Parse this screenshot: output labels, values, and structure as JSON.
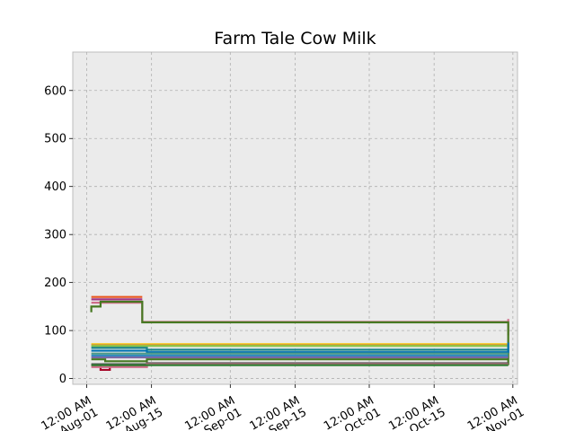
{
  "chart_data": {
    "type": "line",
    "step": true,
    "title": "Farm Tale Cow Milk",
    "xlabel": "",
    "ylabel": "",
    "ylim": [
      -12,
      680
    ],
    "xlim": [
      "2021-07-29",
      "2021-11-02"
    ],
    "yticks": [
      0,
      100,
      200,
      300,
      400,
      500,
      600
    ],
    "xticks": [
      {
        "date": "2021-08-01",
        "label": [
          "12:00 AM",
          "Aug-01"
        ]
      },
      {
        "date": "2021-08-15",
        "label": [
          "12:00 AM",
          "Aug-15"
        ]
      },
      {
        "date": "2021-09-01",
        "label": [
          "12:00 AM",
          "Sep-01"
        ]
      },
      {
        "date": "2021-09-15",
        "label": [
          "12:00 AM",
          "Sep-15"
        ]
      },
      {
        "date": "2021-10-01",
        "label": [
          "12:00 AM",
          "Oct-01"
        ]
      },
      {
        "date": "2021-10-15",
        "label": [
          "12:00 AM",
          "Oct-15"
        ]
      },
      {
        "date": "2021-11-01",
        "label": [
          "12:00 AM",
          "Nov-01"
        ]
      }
    ],
    "grid": true,
    "legend": "none",
    "series": [
      {
        "color": "#e8581f",
        "points": [
          [
            "2021-08-02",
            170
          ],
          [
            "2021-08-13",
            170
          ]
        ]
      },
      {
        "color": "#a23582",
        "points": [
          [
            "2021-08-02",
            165
          ],
          [
            "2021-08-13",
            165
          ]
        ]
      },
      {
        "color": "#cf6e8a",
        "points": [
          [
            "2021-08-02",
            158
          ],
          [
            "2021-08-13",
            158
          ],
          [
            "2021-08-13",
            118
          ],
          [
            "2021-10-31",
            124
          ],
          [
            "2021-10-31",
            90
          ]
        ]
      },
      {
        "color": "#467821",
        "points": [
          [
            "2021-08-02",
            138
          ],
          [
            "2021-08-02",
            150
          ],
          [
            "2021-08-04",
            160
          ],
          [
            "2021-08-13",
            160
          ],
          [
            "2021-08-13",
            117
          ],
          [
            "2021-10-31",
            117
          ],
          [
            "2021-10-31",
            28
          ]
        ]
      },
      {
        "color": "#f4d03f",
        "points": [
          [
            "2021-08-02",
            72
          ],
          [
            "2021-10-31",
            72
          ]
        ]
      },
      {
        "color": "#e0a030",
        "points": [
          [
            "2021-08-02",
            70
          ],
          [
            "2021-10-31",
            70
          ]
        ]
      },
      {
        "color": "#8bc34a",
        "points": [
          [
            "2021-08-02",
            68
          ],
          [
            "2021-10-31",
            68
          ]
        ]
      },
      {
        "color": "#188487",
        "points": [
          [
            "2021-08-02",
            64
          ],
          [
            "2021-08-14",
            64
          ],
          [
            "2021-08-14",
            60
          ],
          [
            "2021-10-31",
            60
          ]
        ]
      },
      {
        "color": "#0072b2",
        "points": [
          [
            "2021-08-02",
            58
          ],
          [
            "2021-08-14",
            58
          ],
          [
            "2021-08-14",
            55
          ],
          [
            "2021-10-31",
            55
          ],
          [
            "2021-10-31",
            75
          ]
        ]
      },
      {
        "color": "#4c9a8a",
        "points": [
          [
            "2021-08-02",
            52
          ],
          [
            "2021-10-31",
            52
          ]
        ]
      },
      {
        "color": "#348abd",
        "points": [
          [
            "2021-08-02",
            48
          ],
          [
            "2021-10-31",
            48
          ]
        ]
      },
      {
        "color": "#7a68a6",
        "points": [
          [
            "2021-08-02",
            44
          ],
          [
            "2021-10-31",
            44
          ]
        ]
      },
      {
        "color": "#467821",
        "points": [
          [
            "2021-08-02",
            40
          ],
          [
            "2021-08-05",
            36
          ],
          [
            "2021-08-14",
            36
          ],
          [
            "2021-08-14",
            40
          ],
          [
            "2021-10-31",
            40
          ]
        ]
      },
      {
        "color": "#555555",
        "points": [
          [
            "2021-08-02",
            30
          ],
          [
            "2021-08-14",
            30
          ],
          [
            "2021-08-14",
            32
          ],
          [
            "2021-10-31",
            32
          ]
        ]
      },
      {
        "color": "#a60628",
        "points": [
          [
            "2021-08-02",
            28
          ],
          [
            "2021-08-04",
            18
          ],
          [
            "2021-08-06",
            18
          ],
          [
            "2021-08-06",
            26
          ],
          [
            "2021-08-14",
            26
          ],
          [
            "2021-08-14",
            30
          ],
          [
            "2021-10-31",
            30
          ]
        ]
      },
      {
        "color": "#cf6e8a",
        "points": [
          [
            "2021-08-02",
            24
          ],
          [
            "2021-08-13",
            24
          ],
          [
            "2021-08-14",
            30
          ],
          [
            "2021-10-31",
            30
          ]
        ]
      },
      {
        "color": "#2e7d32",
        "points": [
          [
            "2021-08-02",
            28
          ],
          [
            "2021-10-31",
            28
          ]
        ]
      }
    ]
  }
}
